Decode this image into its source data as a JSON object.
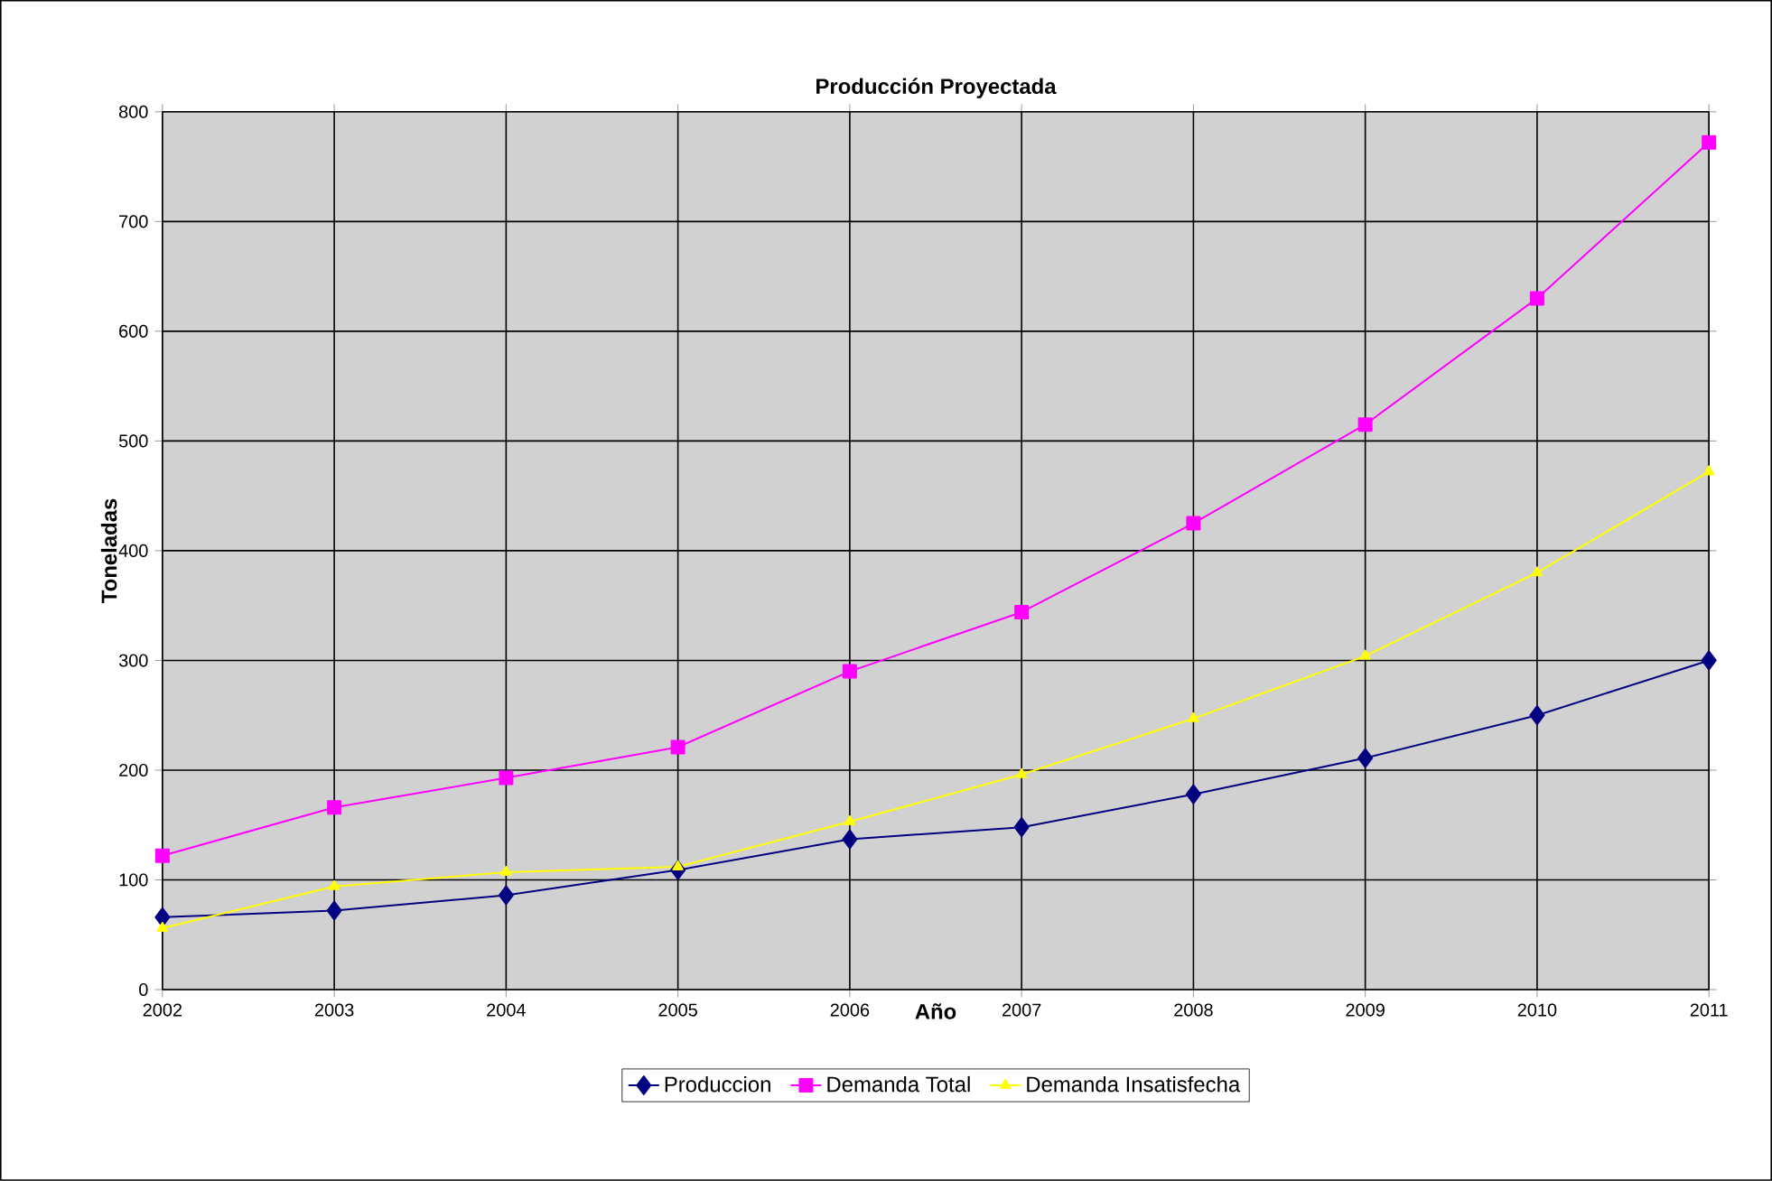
{
  "chart_data": {
    "type": "line",
    "title": "Producción Proyectada",
    "xlabel": "Año",
    "ylabel": "Toneladas",
    "x": [
      2002,
      2003,
      2004,
      2005,
      2006,
      2007,
      2008,
      2009,
      2010,
      2011
    ],
    "series": [
      {
        "name": "Produccion",
        "color": "#000080",
        "marker": "diamond",
        "values": [
          66,
          72,
          86,
          109,
          137,
          148,
          178,
          211,
          250,
          300
        ]
      },
      {
        "name": "Demanda Total",
        "color": "#ff00ff",
        "marker": "square",
        "values": [
          122,
          166,
          193,
          221,
          290,
          344,
          425,
          515,
          630,
          772
        ]
      },
      {
        "name": "Demanda Insatisfecha",
        "color": "#ffff00",
        "marker": "triangle",
        "values": [
          56,
          94,
          107,
          112,
          153,
          196,
          247,
          304,
          380,
          472
        ]
      }
    ],
    "xlim": [
      2002,
      2011
    ],
    "ylim": [
      0,
      800
    ],
    "xticks": [
      2002,
      2003,
      2004,
      2005,
      2006,
      2007,
      2008,
      2009,
      2010,
      2011
    ],
    "yticks": [
      0,
      100,
      200,
      300,
      400,
      500,
      600,
      700,
      800
    ],
    "grid": true,
    "legend": "bottom",
    "line_style": "solid"
  }
}
